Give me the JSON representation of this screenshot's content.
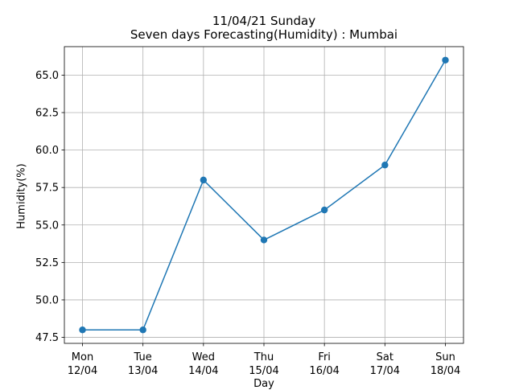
{
  "chart_data": {
    "type": "line",
    "title": "11/04/21 Sunday",
    "subtitle": "Seven days Forecasting(Humidity) : Mumbai",
    "xlabel": "Day",
    "ylabel": "Humidity(%)",
    "categories": [
      [
        "Mon",
        "12/04"
      ],
      [
        "Tue",
        "13/04"
      ],
      [
        "Wed",
        "14/04"
      ],
      [
        "Thu",
        "15/04"
      ],
      [
        "Fri",
        "16/04"
      ],
      [
        "Sat",
        "17/04"
      ],
      [
        "Sun",
        "18/04"
      ]
    ],
    "series": [
      {
        "values": [
          48,
          48,
          58,
          54,
          56,
          59,
          66
        ],
        "color": "#1f77b4",
        "marker": "circle"
      }
    ],
    "yticks": [
      "47.5",
      "50.0",
      "52.5",
      "55.0",
      "57.5",
      "60.0",
      "62.5",
      "65.0"
    ],
    "ylim": [
      47.1,
      66.9
    ],
    "grid": true
  }
}
